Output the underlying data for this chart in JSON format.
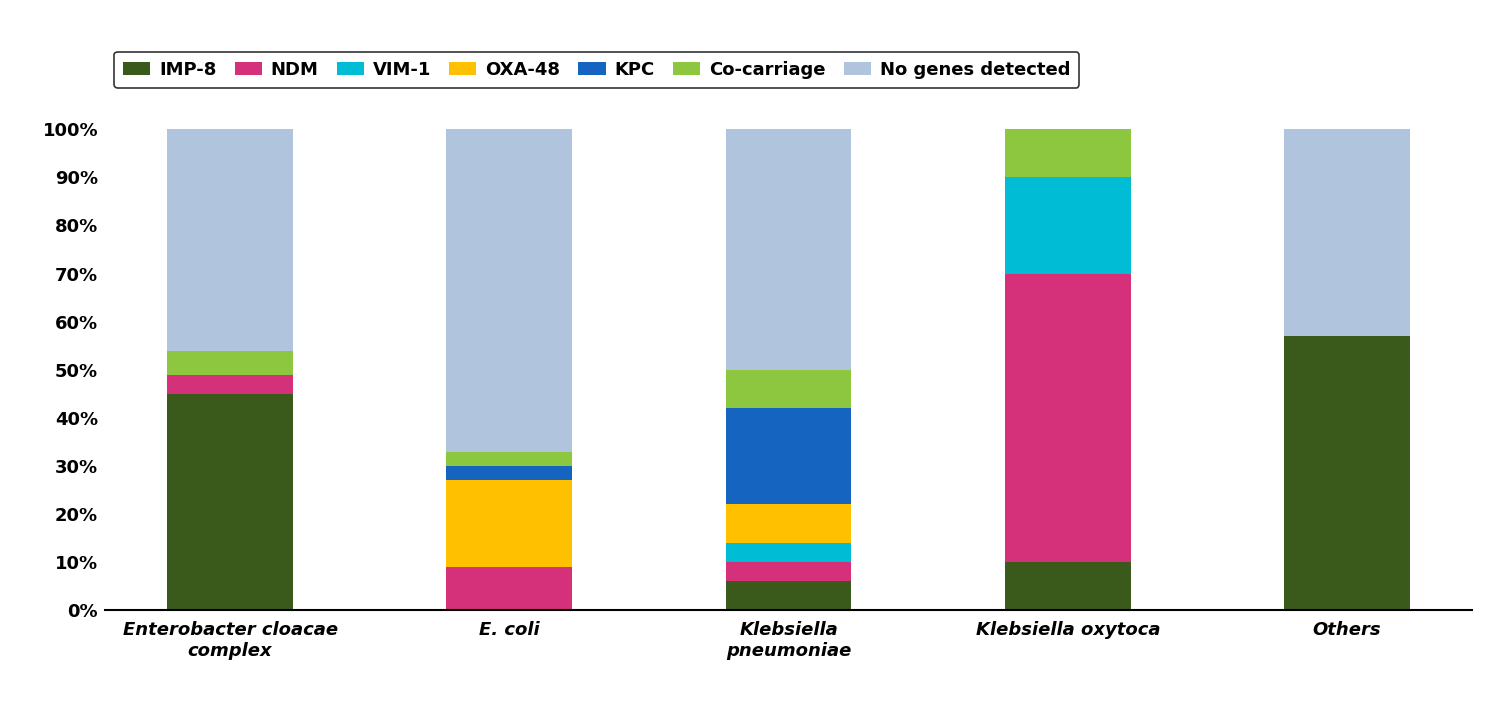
{
  "categories": [
    "Enterobacter cloacae\ncomplex",
    "E. coli",
    "Klebsiella\npneumoniae",
    "Klebsiella oxytoca",
    "Others"
  ],
  "series": {
    "IMP-8": [
      45,
      0,
      6,
      10,
      57
    ],
    "NDM": [
      4,
      9,
      4,
      60,
      0
    ],
    "VIM-1": [
      0,
      0,
      4,
      20,
      0
    ],
    "OXA-48": [
      0,
      18,
      8,
      0,
      0
    ],
    "KPC": [
      0,
      3,
      20,
      0,
      0
    ],
    "Co-carriage": [
      5,
      3,
      8,
      10,
      0
    ],
    "No genes detected": [
      46,
      67,
      50,
      0,
      43
    ]
  },
  "colors": {
    "IMP-8": "#3a5a1c",
    "NDM": "#d4317a",
    "VIM-1": "#00bcd4",
    "OXA-48": "#ffc000",
    "KPC": "#1565c0",
    "Co-carriage": "#8dc63f",
    "No genes detected": "#b0c4de"
  },
  "order": [
    "IMP-8",
    "NDM",
    "VIM-1",
    "OXA-48",
    "KPC",
    "Co-carriage",
    "No genes detected"
  ],
  "ylim": [
    0,
    100
  ],
  "yticks": [
    0,
    10,
    20,
    30,
    40,
    50,
    60,
    70,
    80,
    90,
    100
  ],
  "yticklabels": [
    "0%",
    "10%",
    "20%",
    "30%",
    "40%",
    "50%",
    "60%",
    "70%",
    "80%",
    "90%",
    "100%"
  ],
  "bar_width": 0.45,
  "figsize": [
    15.02,
    7.18
  ],
  "dpi": 100,
  "background_color": "#ffffff"
}
